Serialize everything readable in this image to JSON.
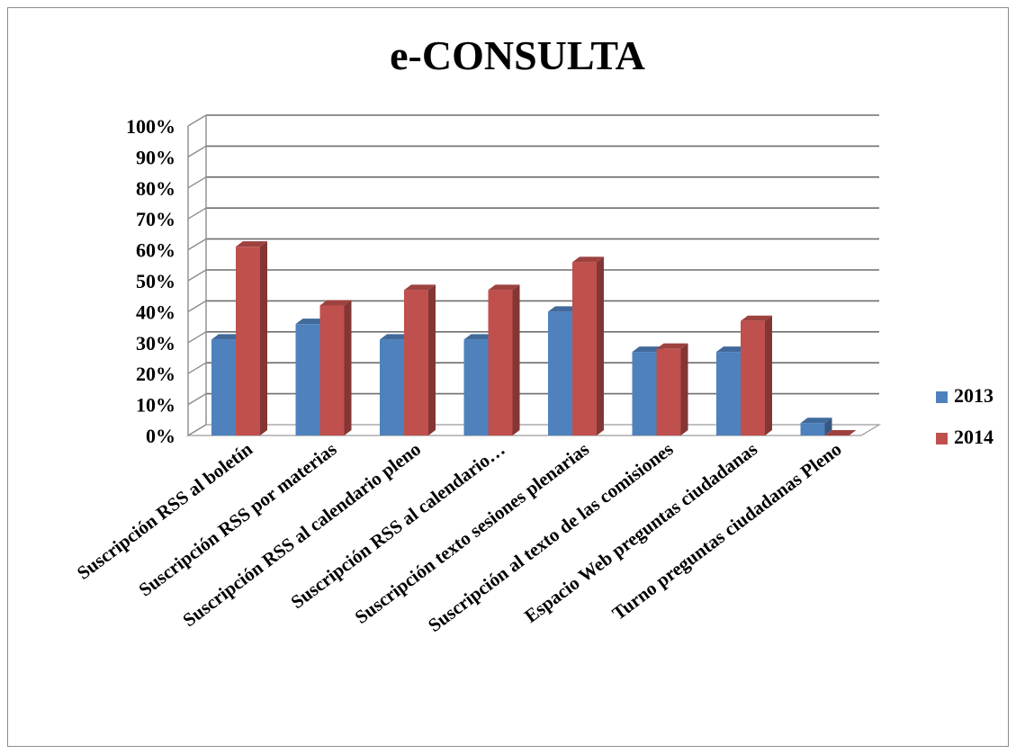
{
  "chart_data": {
    "type": "bar",
    "title": "e-CONSULTA",
    "xlabel": "",
    "ylabel": "",
    "ylim": [
      0,
      100
    ],
    "y_ticks": [
      "0%",
      "10%",
      "20%",
      "30%",
      "40%",
      "50%",
      "60%",
      "70%",
      "80%",
      "90%",
      "100%"
    ],
    "categories": [
      "Suscripción RSS al boletín",
      "Suscripción RSS por materias",
      "Suscripción RSS al calendario pleno",
      "Suscripción RSS al calendario…",
      "Suscripción texto sesiones plenarias",
      "Suscripción al texto de las comisiones",
      "Espacio Web preguntas ciudadanas",
      "Turno preguntas ciudadanas Pleno"
    ],
    "series": [
      {
        "name": "2013",
        "color": "#4f81bd",
        "values": [
          31,
          36,
          31,
          31,
          40,
          27,
          27,
          4
        ]
      },
      {
        "name": "2014",
        "color": "#c0504d",
        "values": [
          61,
          42,
          47,
          47,
          56,
          28,
          37,
          0
        ]
      }
    ],
    "grid": true,
    "legend_position": "right",
    "style": "3d-clustered-column"
  }
}
